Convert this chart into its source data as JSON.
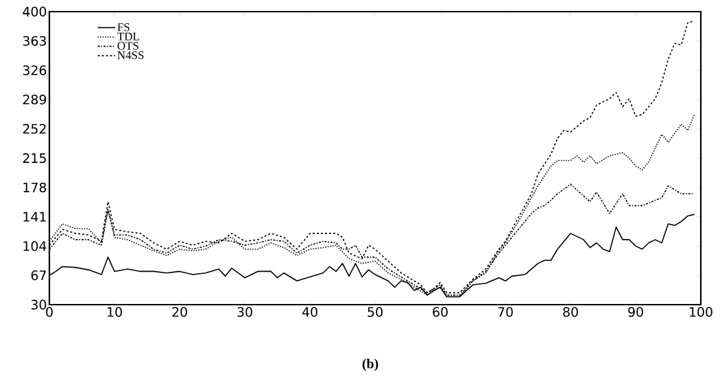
{
  "chart_data": {
    "type": "line",
    "xlim": [
      0,
      100
    ],
    "ylim": [
      30,
      400
    ],
    "xticks": [
      0,
      10,
      20,
      30,
      40,
      50,
      60,
      70,
      80,
      90,
      100
    ],
    "yticks": [
      30,
      67,
      104,
      141,
      178,
      215,
      252,
      289,
      326,
      363,
      400
    ],
    "grid": false,
    "legend": "top left",
    "marker": "none",
    "annotations": [
      "(b)"
    ],
    "series": [
      {
        "name": "FS",
        "color": "#000000",
        "line_style": "solid",
        "x": [
          0,
          1,
          2,
          4,
          6,
          8,
          9,
          10,
          12,
          14,
          16,
          18,
          20,
          22,
          24,
          26,
          27,
          28,
          30,
          32,
          34,
          35,
          36,
          38,
          40,
          42,
          43,
          44,
          45,
          46,
          47,
          48,
          49,
          50,
          52,
          53,
          54,
          55,
          56,
          57,
          58,
          59,
          60,
          61,
          63,
          65,
          67,
          69,
          70,
          71,
          73,
          74,
          75,
          76,
          77,
          78,
          80,
          82,
          83,
          84,
          85,
          86,
          87,
          88,
          89,
          90,
          91,
          92,
          93,
          94,
          95,
          96,
          97,
          98,
          99
        ],
        "values": [
          67,
          72,
          78,
          77,
          74,
          68,
          90,
          72,
          75,
          72,
          72,
          70,
          72,
          68,
          70,
          75,
          66,
          76,
          64,
          72,
          72,
          64,
          70,
          60,
          65,
          70,
          78,
          72,
          82,
          66,
          82,
          65,
          74,
          68,
          60,
          52,
          60,
          58,
          48,
          52,
          42,
          48,
          52,
          40,
          40,
          55,
          57,
          64,
          60,
          66,
          68,
          75,
          82,
          86,
          86,
          100,
          120,
          112,
          102,
          108,
          100,
          97,
          128,
          112,
          112,
          104,
          100,
          108,
          112,
          108,
          132,
          130,
          135,
          142,
          144
        ]
      },
      {
        "name": "TDL",
        "color": "#000000",
        "line_style": "dotted",
        "x": [
          0,
          2,
          4,
          6,
          8,
          9,
          10,
          12,
          14,
          16,
          18,
          20,
          22,
          24,
          26,
          28,
          30,
          32,
          34,
          36,
          38,
          40,
          42,
          44,
          46,
          48,
          50,
          52,
          54,
          56,
          58,
          60,
          61,
          63,
          65,
          67,
          69,
          70,
          72,
          74,
          75,
          77,
          78,
          80,
          81,
          82,
          83,
          84,
          86,
          88,
          89,
          90,
          91,
          92,
          94,
          95,
          97,
          98,
          99
        ],
        "values": [
          110,
          132,
          126,
          126,
          108,
          150,
          115,
          112,
          105,
          98,
          92,
          100,
          98,
          100,
          110,
          115,
          100,
          100,
          108,
          102,
          92,
          100,
          102,
          105,
          88,
          82,
          85,
          70,
          62,
          52,
          42,
          52,
          40,
          40,
          60,
          70,
          98,
          108,
          135,
          165,
          180,
          205,
          212,
          212,
          218,
          210,
          218,
          208,
          218,
          222,
          215,
          205,
          200,
          210,
          245,
          235,
          258,
          250,
          270
        ]
      },
      {
        "name": "OTS",
        "color": "#000000",
        "line_style": "dashdot",
        "x": [
          0,
          2,
          4,
          6,
          8,
          9,
          10,
          12,
          14,
          16,
          18,
          20,
          22,
          24,
          26,
          28,
          30,
          32,
          34,
          36,
          38,
          40,
          42,
          44,
          45,
          46,
          47,
          48,
          50,
          52,
          54,
          56,
          58,
          60,
          61,
          63,
          65,
          67,
          69,
          70,
          72,
          74,
          75,
          76,
          77,
          78,
          80,
          83,
          84,
          86,
          88,
          89,
          91,
          94,
          95,
          97,
          99
        ],
        "values": [
          100,
          120,
          112,
          112,
          105,
          150,
          118,
          118,
          112,
          100,
          95,
          105,
          100,
          104,
          112,
          110,
          105,
          108,
          112,
          110,
          95,
          105,
          110,
          108,
          100,
          100,
          105,
          90,
          90,
          75,
          65,
          55,
          45,
          55,
          42,
          42,
          60,
          72,
          95,
          105,
          125,
          145,
          152,
          155,
          162,
          170,
          182,
          160,
          172,
          145,
          170,
          155,
          155,
          165,
          180,
          170,
          170
        ]
      },
      {
        "name": "N4SS",
        "color": "#000000",
        "line_style": "dashed",
        "x": [
          0,
          2,
          4,
          6,
          8,
          9,
          10,
          12,
          14,
          16,
          18,
          20,
          22,
          24,
          26,
          28,
          30,
          32,
          34,
          36,
          38,
          40,
          42,
          44,
          45,
          46,
          48,
          49,
          50,
          52,
          54,
          56,
          57,
          58,
          59,
          60,
          61,
          63,
          65,
          67,
          69,
          70,
          72,
          74,
          75,
          77,
          78,
          79,
          80,
          81,
          82,
          83,
          84,
          85,
          86,
          87,
          88,
          89,
          90,
          91,
          92,
          93,
          94,
          95,
          96,
          97,
          98,
          99
        ],
        "values": [
          105,
          125,
          120,
          118,
          110,
          160,
          125,
          122,
          120,
          108,
          100,
          110,
          105,
          110,
          108,
          120,
          110,
          112,
          120,
          115,
          100,
          120,
          120,
          120,
          115,
          95,
          88,
          105,
          100,
          85,
          70,
          60,
          55,
          45,
          50,
          58,
          45,
          45,
          62,
          75,
          100,
          110,
          140,
          170,
          195,
          220,
          240,
          250,
          248,
          255,
          262,
          266,
          282,
          286,
          290,
          298,
          280,
          290,
          268,
          270,
          280,
          290,
          310,
          340,
          360,
          358,
          386,
          388
        ]
      }
    ]
  }
}
